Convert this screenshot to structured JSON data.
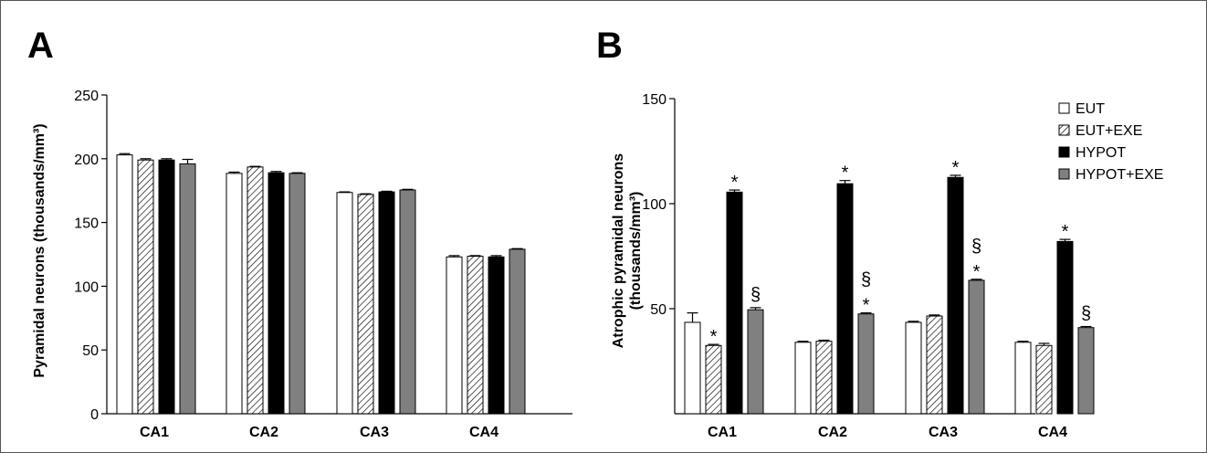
{
  "panels": [
    {
      "letter": "A"
    },
    {
      "letter": "B"
    }
  ],
  "legend": {
    "entries": [
      "EUT",
      "EUT+EXE",
      "HYPOT",
      "HYPOT+EXE"
    ]
  },
  "series_styles": [
    {
      "name": "EUT",
      "fill": "#ffffff",
      "pattern": "none"
    },
    {
      "name": "EUT+EXE",
      "fill": "#ffffff",
      "pattern": "diagonal-hatch"
    },
    {
      "name": "HYPOT",
      "fill": "#000000",
      "pattern": "none"
    },
    {
      "name": "HYPOT+EXE",
      "fill": "#808080",
      "pattern": "none"
    }
  ],
  "chart_data": [
    {
      "type": "bar",
      "panel": "A",
      "ylabel": "Pyramidal neurons (thousands/mm³)",
      "ylim": [
        0,
        250
      ],
      "yticks": [
        0,
        50,
        100,
        150,
        200,
        250
      ],
      "categories": [
        "CA1",
        "CA2",
        "CA3",
        "CA4"
      ],
      "legend_shown": false,
      "series": [
        {
          "name": "EUT",
          "values": [
            203,
            188.5,
            173.5,
            123
          ],
          "errors": [
            1,
            1,
            0.5,
            1
          ]
        },
        {
          "name": "EUT+EXE",
          "values": [
            199,
            193.5,
            172,
            123.5
          ],
          "errors": [
            1,
            0.5,
            0.5,
            0.5
          ]
        },
        {
          "name": "HYPOT",
          "values": [
            199,
            189,
            174,
            123
          ],
          "errors": [
            1,
            1,
            0.5,
            1
          ]
        },
        {
          "name": "HYPOT+EXE",
          "values": [
            196,
            188.5,
            175.5,
            129
          ],
          "errors": [
            3.5,
            0.5,
            0.5,
            0.5
          ]
        }
      ],
      "annotations": []
    },
    {
      "type": "bar",
      "panel": "B",
      "ylabel": "Atrophic pyramidal neurons (thousands/mm³)",
      "ylim": [
        0,
        150
      ],
      "yticks": [
        50,
        100,
        150
      ],
      "categories": [
        "CA1",
        "CA2",
        "CA3",
        "CA4"
      ],
      "legend_shown": true,
      "legend_position": "top-right",
      "series": [
        {
          "name": "EUT",
          "values": [
            43.5,
            34,
            43.5,
            34
          ],
          "errors": [
            4.5,
            0.5,
            0.5,
            0.5
          ]
        },
        {
          "name": "EUT+EXE",
          "values": [
            32.5,
            34.5,
            46.5,
            32.5
          ],
          "errors": [
            0.5,
            0.5,
            0.5,
            1
          ]
        },
        {
          "name": "HYPOT",
          "values": [
            105.5,
            109.5,
            112.5,
            82
          ],
          "errors": [
            1,
            1.5,
            1,
            1
          ]
        },
        {
          "name": "HYPOT+EXE",
          "values": [
            49.5,
            47.5,
            63.5,
            41
          ],
          "errors": [
            1,
            0.5,
            0.5,
            0.5
          ]
        }
      ],
      "annotations": [
        {
          "category": "CA1",
          "series": "EUT+EXE",
          "marks": [
            "*"
          ]
        },
        {
          "category": "CA1",
          "series": "HYPOT",
          "marks": [
            "*"
          ]
        },
        {
          "category": "CA1",
          "series": "HYPOT+EXE",
          "marks": [
            "§"
          ]
        },
        {
          "category": "CA2",
          "series": "HYPOT",
          "marks": [
            "*"
          ]
        },
        {
          "category": "CA2",
          "series": "HYPOT+EXE",
          "marks": [
            "*",
            "§"
          ]
        },
        {
          "category": "CA3",
          "series": "HYPOT",
          "marks": [
            "*"
          ]
        },
        {
          "category": "CA3",
          "series": "HYPOT+EXE",
          "marks": [
            "*",
            "§"
          ]
        },
        {
          "category": "CA4",
          "series": "HYPOT",
          "marks": [
            "*"
          ]
        },
        {
          "category": "CA4",
          "series": "HYPOT+EXE",
          "marks": [
            "§"
          ]
        }
      ]
    }
  ]
}
